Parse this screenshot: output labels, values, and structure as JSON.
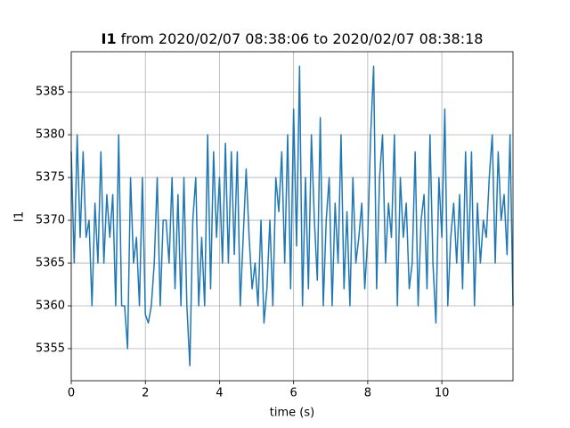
{
  "chart_data": {
    "type": "line",
    "title": {
      "bold": "I1",
      "text": "from 2020/02/07 08:38:06 to 2020/02/07 08:38:18"
    },
    "x_label": "time (s)",
    "y_label": "I1",
    "grid": true,
    "xlim": [
      0,
      11.92
    ],
    "ylim": [
      5351.25,
      5389.7
    ],
    "xticks": [
      0,
      2,
      4,
      6,
      8,
      10
    ],
    "yticks": [
      5355,
      5360,
      5365,
      5370,
      5375,
      5380,
      5385
    ],
    "x": [
      0,
      0.08,
      0.16,
      0.24,
      0.32,
      0.4,
      0.48,
      0.56,
      0.64,
      0.72,
      0.8,
      0.88,
      0.96,
      1.04,
      1.12,
      1.2,
      1.28,
      1.36,
      1.44,
      1.52,
      1.6,
      1.68,
      1.76,
      1.84,
      1.92,
      2,
      2.08,
      2.16,
      2.24,
      2.32,
      2.4,
      2.48,
      2.56,
      2.64,
      2.72,
      2.8,
      2.88,
      2.96,
      3.04,
      3.12,
      3.2,
      3.28,
      3.36,
      3.44,
      3.52,
      3.6,
      3.68,
      3.76,
      3.84,
      3.92,
      4,
      4.08,
      4.16,
      4.24,
      4.32,
      4.4,
      4.48,
      4.56,
      4.64,
      4.72,
      4.8,
      4.88,
      4.96,
      5.04,
      5.12,
      5.2,
      5.28,
      5.36,
      5.44,
      5.52,
      5.6,
      5.68,
      5.76,
      5.84,
      5.92,
      6,
      6.08,
      6.16,
      6.24,
      6.32,
      6.4,
      6.48,
      6.56,
      6.64,
      6.72,
      6.8,
      6.88,
      6.96,
      7.04,
      7.12,
      7.2,
      7.28,
      7.36,
      7.44,
      7.52,
      7.6,
      7.68,
      7.76,
      7.84,
      7.92,
      8,
      8.08,
      8.16,
      8.24,
      8.32,
      8.4,
      8.48,
      8.56,
      8.64,
      8.72,
      8.8,
      8.88,
      8.96,
      9.04,
      9.12,
      9.2,
      9.28,
      9.36,
      9.44,
      9.52,
      9.6,
      9.68,
      9.76,
      9.84,
      9.92,
      10,
      10.08,
      10.16,
      10.24,
      10.32,
      10.4,
      10.48,
      10.56,
      10.64,
      10.72,
      10.8,
      10.88,
      10.96,
      11.04,
      11.12,
      11.2,
      11.28,
      11.36,
      11.44,
      11.52,
      11.6,
      11.68,
      11.76,
      11.84,
      11.92
    ],
    "series": [
      {
        "color": "#1f77b4",
        "values": [
          5378,
          5365,
          5380,
          5368,
          5378,
          5368,
          5370,
          5360,
          5372,
          5365,
          5378,
          5365,
          5373,
          5368,
          5373,
          5360,
          5380,
          5360,
          5360,
          5355,
          5375,
          5365,
          5368,
          5360,
          5375,
          5359,
          5358,
          5360,
          5365,
          5375,
          5360,
          5370,
          5370,
          5365,
          5375,
          5362,
          5373,
          5360,
          5375,
          5360,
          5353,
          5370,
          5375,
          5360,
          5368,
          5360,
          5380,
          5362,
          5378,
          5368,
          5375,
          5365,
          5379,
          5365,
          5378,
          5366,
          5378,
          5360,
          5368,
          5376,
          5368,
          5362,
          5365,
          5360,
          5370,
          5358,
          5362,
          5370,
          5360,
          5375,
          5371,
          5378,
          5365,
          5380,
          5362,
          5383,
          5367,
          5388,
          5360,
          5375,
          5362,
          5380,
          5370,
          5363,
          5382,
          5360,
          5370,
          5375,
          5360,
          5372,
          5365,
          5380,
          5362,
          5371,
          5360,
          5375,
          5365,
          5368,
          5372,
          5362,
          5368,
          5380,
          5388,
          5362,
          5375,
          5380,
          5365,
          5372,
          5368,
          5380,
          5360,
          5375,
          5368,
          5372,
          5362,
          5365,
          5378,
          5360,
          5370,
          5373,
          5362,
          5380,
          5365,
          5358,
          5375,
          5368,
          5383,
          5360,
          5368,
          5372,
          5365,
          5373,
          5362,
          5378,
          5365,
          5378,
          5360,
          5372,
          5365,
          5370,
          5368,
          5375,
          5380,
          5365,
          5378,
          5370,
          5373,
          5366,
          5380,
          5360
        ]
      }
    ]
  }
}
